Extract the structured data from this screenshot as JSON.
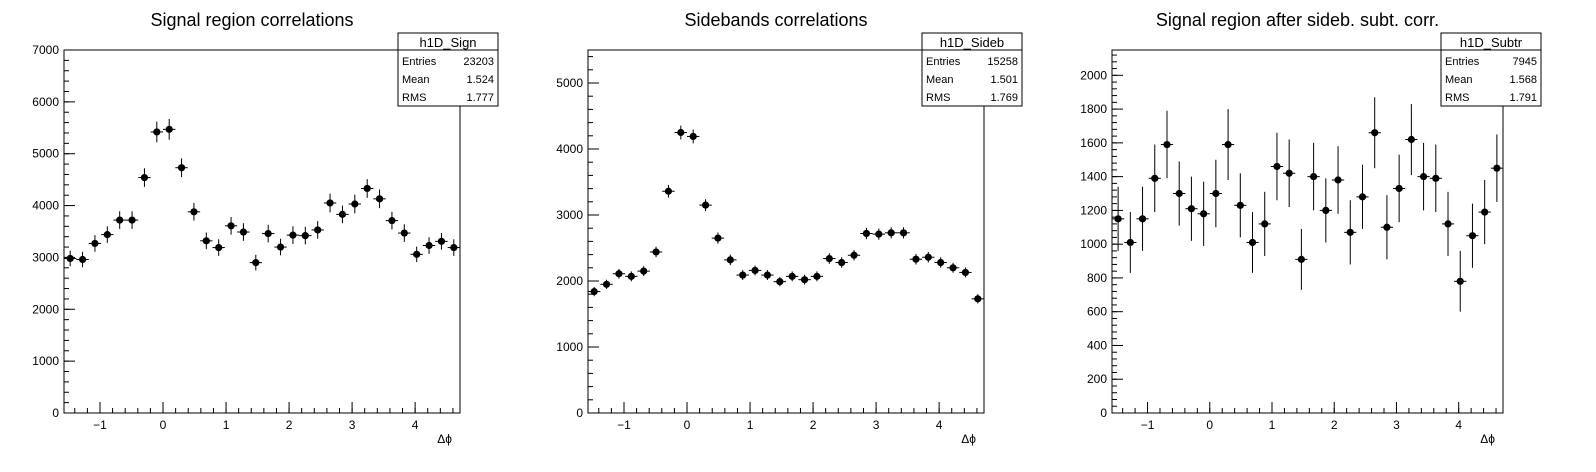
{
  "chart_data": [
    {
      "type": "scatter",
      "title": "Signal region correlations",
      "xlabel": "Δϕ",
      "ylabel": "",
      "xlim": [
        -1.571,
        4.712
      ],
      "ylim": [
        0,
        7000
      ],
      "xticks": [
        -1,
        0,
        1,
        2,
        3,
        4
      ],
      "yticks": [
        0,
        1000,
        2000,
        3000,
        4000,
        5000,
        6000,
        7000
      ],
      "yminor_step": 200,
      "stats": {
        "name": "h1D_Sign",
        "entries_label": "Entries",
        "entries": "23203",
        "mean_label": "Mean",
        "mean": "1.524",
        "rms_label": "RMS",
        "rms": "1.777"
      },
      "values": [
        2980,
        2960,
        3270,
        3440,
        3720,
        3720,
        4540,
        5420,
        5470,
        4730,
        3880,
        3320,
        3190,
        3610,
        3490,
        2900,
        3460,
        3200,
        3430,
        3420,
        3530,
        4050,
        3830,
        4030,
        4330,
        4130,
        3710,
        3470,
        3060,
        3230,
        3310,
        3190
      ],
      "errors": [
        150,
        150,
        160,
        160,
        170,
        170,
        180,
        200,
        200,
        180,
        170,
        160,
        160,
        170,
        170,
        150,
        170,
        160,
        170,
        170,
        170,
        180,
        170,
        180,
        180,
        180,
        170,
        170,
        150,
        160,
        160,
        160
      ]
    },
    {
      "type": "scatter",
      "title": "Sidebands correlations",
      "xlabel": "Δϕ",
      "ylabel": "",
      "xlim": [
        -1.571,
        4.712
      ],
      "ylim": [
        0,
        5500
      ],
      "xticks": [
        -1,
        0,
        1,
        2,
        3,
        4
      ],
      "yticks": [
        0,
        1000,
        2000,
        3000,
        4000,
        5000
      ],
      "yminor_step": 200,
      "stats": {
        "name": "h1D_Sideb",
        "entries_label": "Entries",
        "entries": "15258",
        "mean_label": "Mean",
        "mean": "1.501",
        "rms_label": "RMS",
        "rms": "1.769"
      },
      "values": [
        1840,
        1950,
        2110,
        2070,
        2150,
        2440,
        3360,
        4250,
        4190,
        3150,
        2650,
        2320,
        2090,
        2160,
        2090,
        1990,
        2070,
        2020,
        2070,
        2340,
        2280,
        2390,
        2720,
        2710,
        2730,
        2730,
        2330,
        2360,
        2280,
        2200,
        2130,
        1730
      ],
      "errors": [
        70,
        70,
        75,
        75,
        75,
        80,
        95,
        105,
        105,
        90,
        85,
        80,
        75,
        75,
        75,
        70,
        75,
        75,
        75,
        80,
        80,
        80,
        85,
        85,
        85,
        85,
        80,
        80,
        80,
        75,
        75,
        70
      ]
    },
    {
      "type": "scatter",
      "title": "Signal region after sideb. subt. corr.",
      "xlabel": "Δϕ",
      "ylabel": "",
      "xlim": [
        -1.571,
        4.712
      ],
      "ylim": [
        0,
        2150
      ],
      "xticks": [
        -1,
        0,
        1,
        2,
        3,
        4
      ],
      "yticks": [
        0,
        200,
        400,
        600,
        800,
        1000,
        1200,
        1400,
        1600,
        1800,
        2000
      ],
      "yminor_step": 40,
      "stats": {
        "name": "h1D_Subtr",
        "entries_label": "Entries",
        "entries": "7945",
        "mean_label": "Mean",
        "mean": "1.568",
        "rms_label": "RMS",
        "rms": "1.791"
      },
      "values": [
        1150,
        1010,
        1150,
        1390,
        1590,
        1300,
        1210,
        1180,
        1300,
        1590,
        1230,
        1010,
        1120,
        1460,
        1420,
        910,
        1400,
        1200,
        1380,
        1070,
        1280,
        1660,
        1100,
        1330,
        1620,
        1400,
        1390,
        1120,
        780,
        1050,
        1190,
        1450
      ],
      "errors": [
        190,
        180,
        190,
        200,
        200,
        190,
        190,
        190,
        200,
        210,
        190,
        180,
        190,
        200,
        200,
        180,
        200,
        190,
        200,
        190,
        190,
        210,
        190,
        200,
        210,
        200,
        200,
        190,
        180,
        190,
        190,
        200
      ]
    }
  ]
}
